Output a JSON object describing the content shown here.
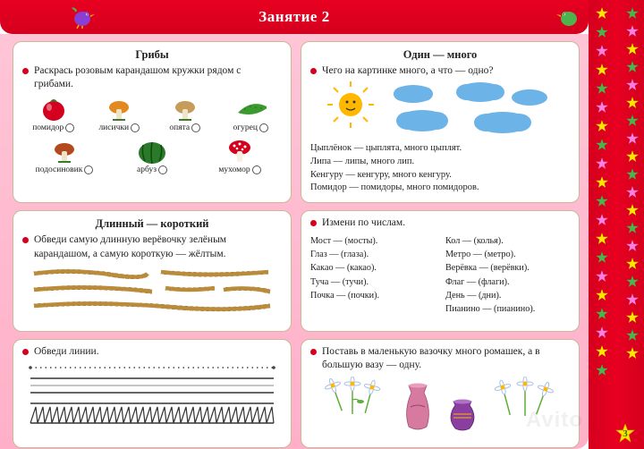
{
  "header": {
    "title": "Занятие 2"
  },
  "sidebar": {
    "star_colors": [
      "#ffe600",
      "#4db34d",
      "#ff7fe2",
      "#ffe600",
      "#4db34d",
      "#ff7fe2",
      "#ffe600",
      "#4db34d",
      "#ff7fe2",
      "#ffe600",
      "#4db34d",
      "#ff7fe2",
      "#ffe600",
      "#4db34d",
      "#ff7fe2",
      "#ffe600",
      "#4db34d",
      "#ff7fe2",
      "#ffe600",
      "#4db34d"
    ],
    "page_number": "3"
  },
  "colors": {
    "red": "#d4001e",
    "pink": "#ffb0c8",
    "panel_border": "#c9b89a",
    "sun": "#ffb700",
    "cloud": "#6cb3e8",
    "rope": "#b98b3a"
  },
  "panel_mushrooms": {
    "title": "Грибы",
    "task": "Раскрась розовым карандашом кружки рядом с грибами.",
    "row1": [
      {
        "label": "помидор",
        "fill": "#d4001e",
        "shape": "circle"
      },
      {
        "label": "лисички",
        "fill": "#e28a1f",
        "shape": "mushroom"
      },
      {
        "label": "опята",
        "fill": "#c79b5a",
        "shape": "mushroom"
      },
      {
        "label": "огурец",
        "fill": "#3a9a2f",
        "shape": "cucumber"
      }
    ],
    "row2": [
      {
        "label": "подосиновик",
        "fill": "#b34a1f",
        "shape": "mushroom"
      },
      {
        "label": "арбуз",
        "fill": "#2a7a2a",
        "shape": "watermelon"
      },
      {
        "label": "мухомор",
        "fill": "#d4001e",
        "shape": "amanita"
      }
    ]
  },
  "panel_one_many": {
    "title": "Один — много",
    "task": "Чего на картинке много, а что — одно?",
    "lines": [
      "Цыплёнок — цыплята, много цыплят.",
      "Липа — липы, много лип.",
      "Кенгуру — кенгуру, много кенгуру.",
      "Помидор — помидоры, много помидоров."
    ]
  },
  "panel_long_short": {
    "title": "Длинный — короткий",
    "task": "Обведи самую длинную верёвочку зелёным карандашом, а самую короткую — жёлтым."
  },
  "panel_numbers": {
    "task": "Измени по числам.",
    "left": [
      "Мост — (мосты).",
      "Глаз — (глаза).",
      "Какао — (какао).",
      "Туча — (тучи).",
      "Почка — (почки)."
    ],
    "right": [
      "Кол — (колья).",
      "Метро — (метро).",
      "Верёвка — (верёвки).",
      "Флаг — (флаги).",
      "День — (дни).",
      "Пианино — (пианино)."
    ]
  },
  "panel_trace": {
    "task": "Обведи линии."
  },
  "panel_vases": {
    "task": "Поставь в маленькую вазочку много ромашек, а в большую вазу — одну.",
    "vase_colors": {
      "tall": "#d77aa0",
      "short": "#8a3fa0"
    },
    "flower_color": "#5fae3a"
  },
  "watermark": "Avito"
}
